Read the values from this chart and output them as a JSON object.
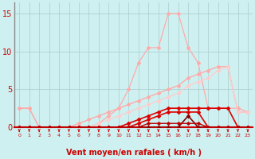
{
  "x": [
    0,
    1,
    2,
    3,
    4,
    5,
    6,
    7,
    8,
    9,
    10,
    11,
    12,
    13,
    14,
    15,
    16,
    17,
    18,
    19,
    20,
    21,
    22,
    23
  ],
  "series": [
    {
      "name": "linear_light1",
      "y": [
        2.5,
        2.5,
        0.0,
        0.0,
        0.0,
        0.0,
        0.5,
        1.0,
        1.5,
        2.0,
        2.5,
        3.0,
        3.5,
        4.0,
        4.5,
        5.0,
        5.5,
        6.5,
        7.0,
        7.5,
        8.0,
        8.0,
        2.0,
        2.0
      ],
      "color": "#ffaaaa",
      "lw": 1.0,
      "marker": "D",
      "ms": 2.0
    },
    {
      "name": "peaked_light",
      "y": [
        2.5,
        2.5,
        0.0,
        0.0,
        0.0,
        0.0,
        0.0,
        0.0,
        0.5,
        1.5,
        2.5,
        5.0,
        8.5,
        10.5,
        10.5,
        15.0,
        15.0,
        10.5,
        8.5,
        2.5,
        2.5,
        2.5,
        2.5,
        2.0
      ],
      "color": "#ffaaaa",
      "lw": 0.9,
      "marker": "D",
      "ms": 2.0
    },
    {
      "name": "linear_light2",
      "y": [
        0.0,
        0.0,
        0.0,
        0.0,
        0.0,
        0.0,
        0.0,
        0.0,
        0.5,
        1.0,
        1.5,
        2.0,
        2.5,
        3.0,
        3.5,
        4.0,
        4.5,
        5.5,
        6.0,
        6.5,
        7.5,
        8.0,
        2.0,
        2.0
      ],
      "color": "#ffcccc",
      "lw": 0.9,
      "marker": "D",
      "ms": 2.0
    },
    {
      "name": "red_upper",
      "y": [
        0.0,
        0.0,
        0.0,
        0.0,
        0.0,
        0.0,
        0.0,
        0.0,
        0.0,
        0.0,
        0.0,
        0.5,
        1.0,
        1.5,
        2.0,
        2.5,
        2.5,
        2.5,
        2.5,
        2.5,
        2.5,
        2.5,
        0.0,
        0.0
      ],
      "color": "#dd0000",
      "lw": 1.2,
      "marker": "D",
      "ms": 2.0
    },
    {
      "name": "red_mid",
      "y": [
        0.0,
        0.0,
        0.0,
        0.0,
        0.0,
        0.0,
        0.0,
        0.0,
        0.0,
        0.0,
        0.0,
        0.0,
        0.5,
        1.0,
        1.5,
        2.0,
        2.0,
        2.0,
        2.0,
        0.0,
        0.0,
        0.0,
        0.0,
        0.0
      ],
      "color": "#dd0000",
      "lw": 1.2,
      "marker": "D",
      "ms": 2.0
    },
    {
      "name": "dark_red",
      "y": [
        0.0,
        0.0,
        0.0,
        0.0,
        0.0,
        0.0,
        0.0,
        0.0,
        0.0,
        0.0,
        0.0,
        0.0,
        0.0,
        0.0,
        0.0,
        0.0,
        0.0,
        1.5,
        0.0,
        0.0,
        0.0,
        0.0,
        0.0,
        0.0
      ],
      "color": "#880000",
      "lw": 1.2,
      "marker": "D",
      "ms": 2.0
    },
    {
      "name": "near_zero",
      "y": [
        0.0,
        0.0,
        0.0,
        0.0,
        0.0,
        0.0,
        0.0,
        0.0,
        0.0,
        0.0,
        0.0,
        0.0,
        0.0,
        0.5,
        0.5,
        0.5,
        0.5,
        0.5,
        0.5,
        0.0,
        0.0,
        0.0,
        0.0,
        0.0
      ],
      "color": "#bb0000",
      "lw": 1.0,
      "marker": "D",
      "ms": 1.8
    }
  ],
  "yticks": [
    0,
    5,
    10,
    15
  ],
  "xticks": [
    0,
    1,
    2,
    3,
    4,
    5,
    6,
    7,
    8,
    9,
    10,
    11,
    12,
    13,
    14,
    15,
    16,
    17,
    18,
    19,
    20,
    21,
    22,
    23
  ],
  "xlabel": "Vent moyen/en rafales ( km/h )",
  "ylim": [
    0.0,
    16.5
  ],
  "xlim": [
    -0.5,
    23.5
  ],
  "bg_color": "#cff0f0",
  "grid_color": "#aacccc",
  "tick_color": "#cc0000",
  "label_color": "#cc0000",
  "arrow_color": "#cc0000",
  "left_spine_color": "#888888",
  "bottom_spine_color": "#cc0000"
}
